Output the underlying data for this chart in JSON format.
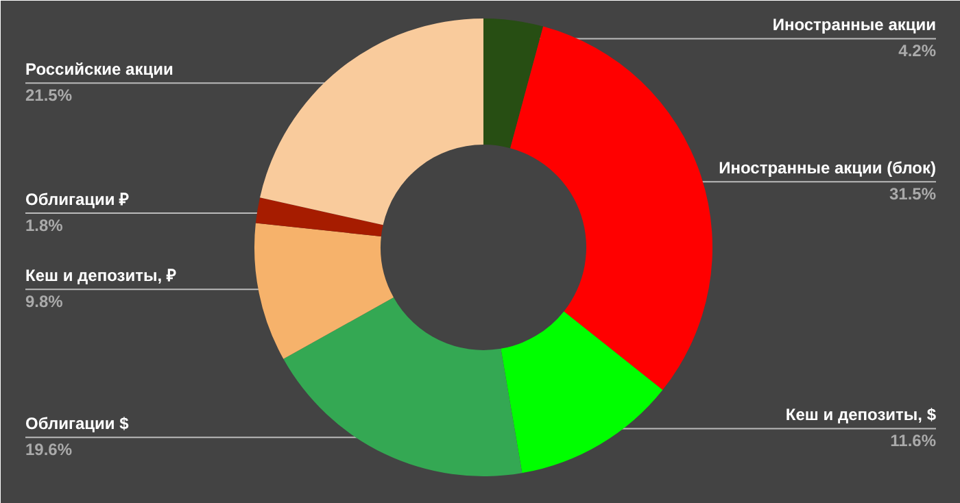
{
  "chart_data": {
    "type": "donut",
    "categories": [
      "Иностранные акции",
      "Иностранные акции (блок)",
      "Кеш и депозиты, $",
      "Облигации $",
      "Кеш и депозиты, ₽",
      "Облигации ₽",
      "Российские акции"
    ],
    "values": [
      4.2,
      31.5,
      11.6,
      19.6,
      9.8,
      1.8,
      21.5
    ],
    "colors": [
      "#274e13",
      "#ff0000",
      "#00ff00",
      "#34a853",
      "#f6b26b",
      "#a61c00",
      "#f9cb9c"
    ],
    "value_labels": [
      "4.2%",
      "31.5%",
      "11.6%",
      "19.6%",
      "9.8%",
      "1.8%",
      "21.5%"
    ]
  }
}
